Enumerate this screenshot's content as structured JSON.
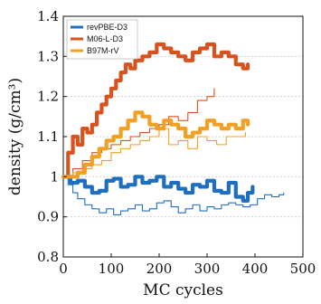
{
  "chart_data": {
    "type": "line",
    "xlabel": "MC cycles",
    "ylabel": "density (g/cm³)",
    "xlim": [
      0,
      500
    ],
    "ylim": [
      0.8,
      1.4
    ],
    "x_ticks": [
      0,
      100,
      200,
      300,
      400,
      500
    ],
    "y_ticks": [
      0.8,
      0.9,
      1.0,
      1.1,
      1.2,
      1.3,
      1.4
    ],
    "x_tick_labels": [
      "0",
      "100",
      "200",
      "300",
      "400",
      "500"
    ],
    "y_tick_labels": [
      "0.8",
      "0.9",
      "1",
      "1.1",
      "1.2",
      "1.3",
      "1.4"
    ],
    "grid": "horizontal dashed",
    "legend_position": "top-left",
    "series": [
      {
        "name": "revPBE-D3",
        "color": "#1f6fc0",
        "style": "thick",
        "x": [
          0,
          15,
          30,
          45,
          60,
          75,
          90,
          105,
          120,
          135,
          150,
          165,
          180,
          195,
          210,
          225,
          240,
          255,
          270,
          285,
          300,
          315,
          330,
          345,
          360,
          375,
          385,
          395
        ],
        "y": [
          1.0,
          0.985,
          0.99,
          0.975,
          0.96,
          0.965,
          0.99,
          0.995,
          0.975,
          0.98,
          1.0,
          0.985,
          0.99,
          1.0,
          0.975,
          0.985,
          0.97,
          0.96,
          0.98,
          0.975,
          0.99,
          0.965,
          0.96,
          0.985,
          0.95,
          0.94,
          0.96,
          0.975
        ]
      },
      {
        "name": "",
        "color": "#1f6fc0",
        "style": "thin",
        "x": [
          0,
          10,
          20,
          30,
          45,
          60,
          75,
          90,
          105,
          120,
          135,
          150,
          165,
          180,
          195,
          210,
          225,
          240,
          255,
          270,
          285,
          300,
          315,
          330,
          345,
          360,
          375,
          390,
          405,
          420,
          435,
          450,
          460
        ],
        "y": [
          1.0,
          0.98,
          0.96,
          0.945,
          0.93,
          0.92,
          0.91,
          0.92,
          0.905,
          0.915,
          0.92,
          0.93,
          0.915,
          0.92,
          0.935,
          0.94,
          0.925,
          0.91,
          0.92,
          0.93,
          0.915,
          0.925,
          0.92,
          0.93,
          0.935,
          0.93,
          0.925,
          0.93,
          0.945,
          0.955,
          0.95,
          0.955,
          0.96
        ]
      },
      {
        "name": "M06-L-D3",
        "color": "#d9521e",
        "style": "thick",
        "x": [
          0,
          10,
          20,
          30,
          40,
          50,
          60,
          70,
          80,
          90,
          100,
          110,
          120,
          130,
          140,
          150,
          165,
          180,
          195,
          210,
          225,
          240,
          255,
          270,
          285,
          300,
          315,
          330,
          345,
          360,
          375,
          385
        ],
        "y": [
          1.0,
          1.06,
          1.1,
          1.08,
          1.12,
          1.11,
          1.13,
          1.16,
          1.18,
          1.2,
          1.22,
          1.24,
          1.26,
          1.28,
          1.27,
          1.29,
          1.3,
          1.31,
          1.33,
          1.32,
          1.31,
          1.3,
          1.29,
          1.31,
          1.32,
          1.33,
          1.3,
          1.31,
          1.3,
          1.28,
          1.27,
          1.28
        ]
      },
      {
        "name": "",
        "color": "#d9521e",
        "style": "thin",
        "x": [
          0,
          20,
          40,
          60,
          80,
          100,
          120,
          140,
          160,
          180,
          200,
          220,
          240,
          260,
          280,
          300,
          315
        ],
        "y": [
          1.0,
          1.02,
          1.04,
          1.06,
          1.07,
          1.08,
          1.09,
          1.1,
          1.11,
          1.12,
          1.13,
          1.15,
          1.14,
          1.16,
          1.19,
          1.2,
          1.22
        ]
      },
      {
        "name": "B97M-rV",
        "color": "#f2a024",
        "style": "thick",
        "x": [
          0,
          15,
          30,
          45,
          60,
          75,
          90,
          105,
          120,
          135,
          150,
          165,
          180,
          195,
          210,
          225,
          240,
          255,
          270,
          285,
          300,
          315,
          330,
          345,
          360,
          375,
          385
        ],
        "y": [
          1.0,
          1.0,
          1.01,
          1.03,
          1.05,
          1.07,
          1.09,
          1.1,
          1.12,
          1.14,
          1.16,
          1.15,
          1.13,
          1.12,
          1.14,
          1.13,
          1.12,
          1.1,
          1.11,
          1.12,
          1.14,
          1.13,
          1.12,
          1.13,
          1.12,
          1.14,
          1.13
        ]
      },
      {
        "name": "",
        "color": "#f2a024",
        "style": "thin",
        "x": [
          0,
          20,
          40,
          60,
          80,
          100,
          120,
          140,
          160,
          180,
          200,
          220,
          240,
          260,
          280,
          300,
          320,
          340,
          360,
          380
        ],
        "y": [
          1.0,
          1.01,
          1.02,
          1.03,
          1.04,
          1.06,
          1.07,
          1.08,
          1.09,
          1.1,
          1.12,
          1.08,
          1.09,
          1.07,
          1.1,
          1.09,
          1.08,
          1.1,
          1.1,
          1.11
        ]
      }
    ]
  }
}
